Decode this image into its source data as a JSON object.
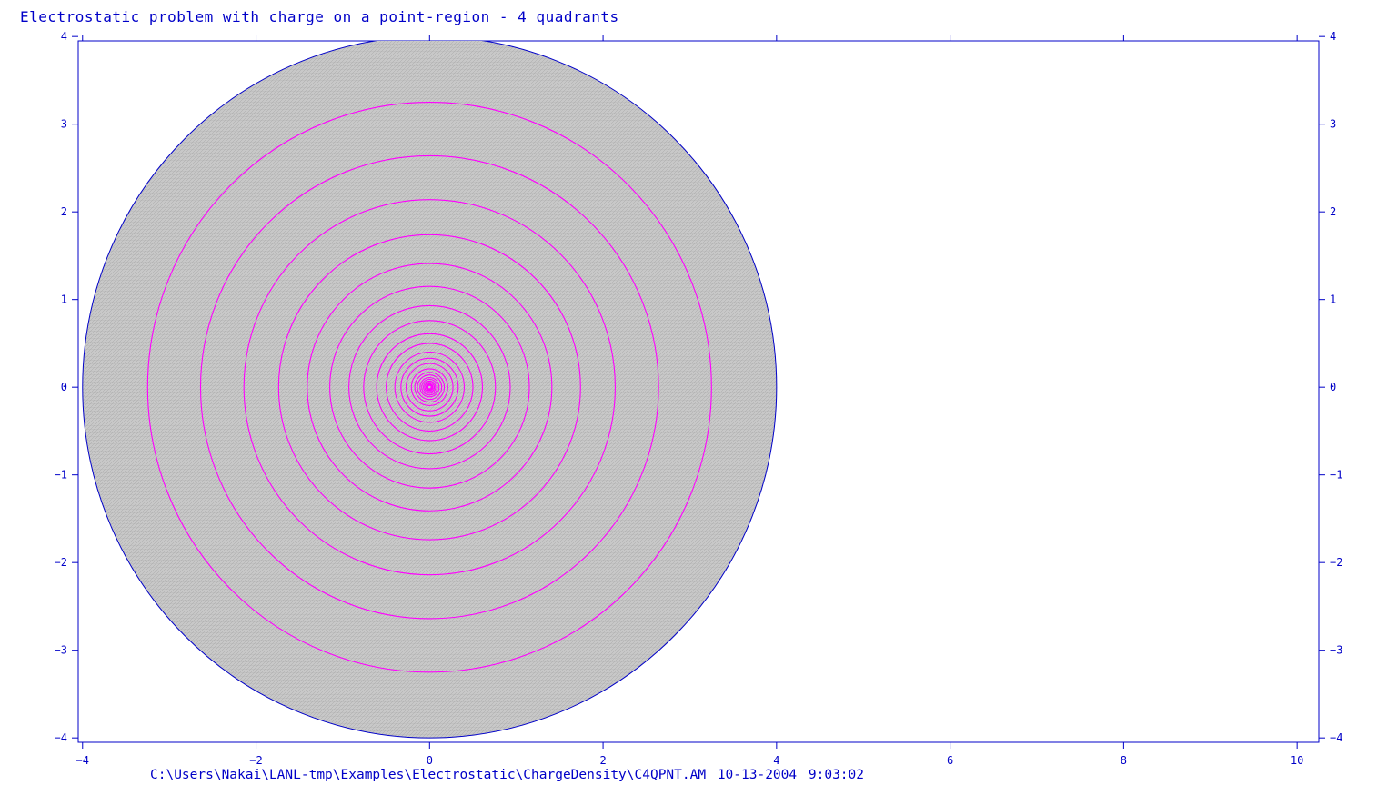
{
  "colors": {
    "axis": "#0000c8",
    "mesh_fill": "#c8c8c8",
    "mesh_line": "#a8a8a8",
    "contour": "#ff00ff",
    "text": "#0000c8",
    "background": "#ffffff"
  },
  "chart_data": {
    "type": "contour",
    "title": "Electrostatic problem with charge on a point-region - 4 quadrants",
    "xlabel": "",
    "ylabel": "",
    "xlim": [
      -4.05,
      10.25
    ],
    "ylim": [
      -4.05,
      3.95
    ],
    "x_ticks": [
      -4,
      -2,
      0,
      2,
      4,
      6,
      8,
      10
    ],
    "y_ticks": [
      4,
      3,
      2,
      1,
      0,
      -1,
      -2,
      -3,
      -4
    ],
    "grid": false,
    "problem_region": {
      "shape": "circle",
      "center": [
        0,
        0
      ],
      "radius": 4.0
    },
    "contour_radii": [
      3.25,
      2.64,
      2.14,
      1.74,
      1.41,
      1.15,
      0.93,
      0.76,
      0.61,
      0.5,
      0.4,
      0.33,
      0.27,
      0.21,
      0.17,
      0.14,
      0.11,
      0.09,
      0.07,
      0.055,
      0.04,
      0.03,
      0.02
    ]
  },
  "footer": {
    "path": "C:\\Users\\Nakai\\LANL-tmp\\Examples\\Electrostatic\\ChargeDensity\\C4QPNT.AM",
    "date": "10-13-2004",
    "time": "9:03:02"
  }
}
